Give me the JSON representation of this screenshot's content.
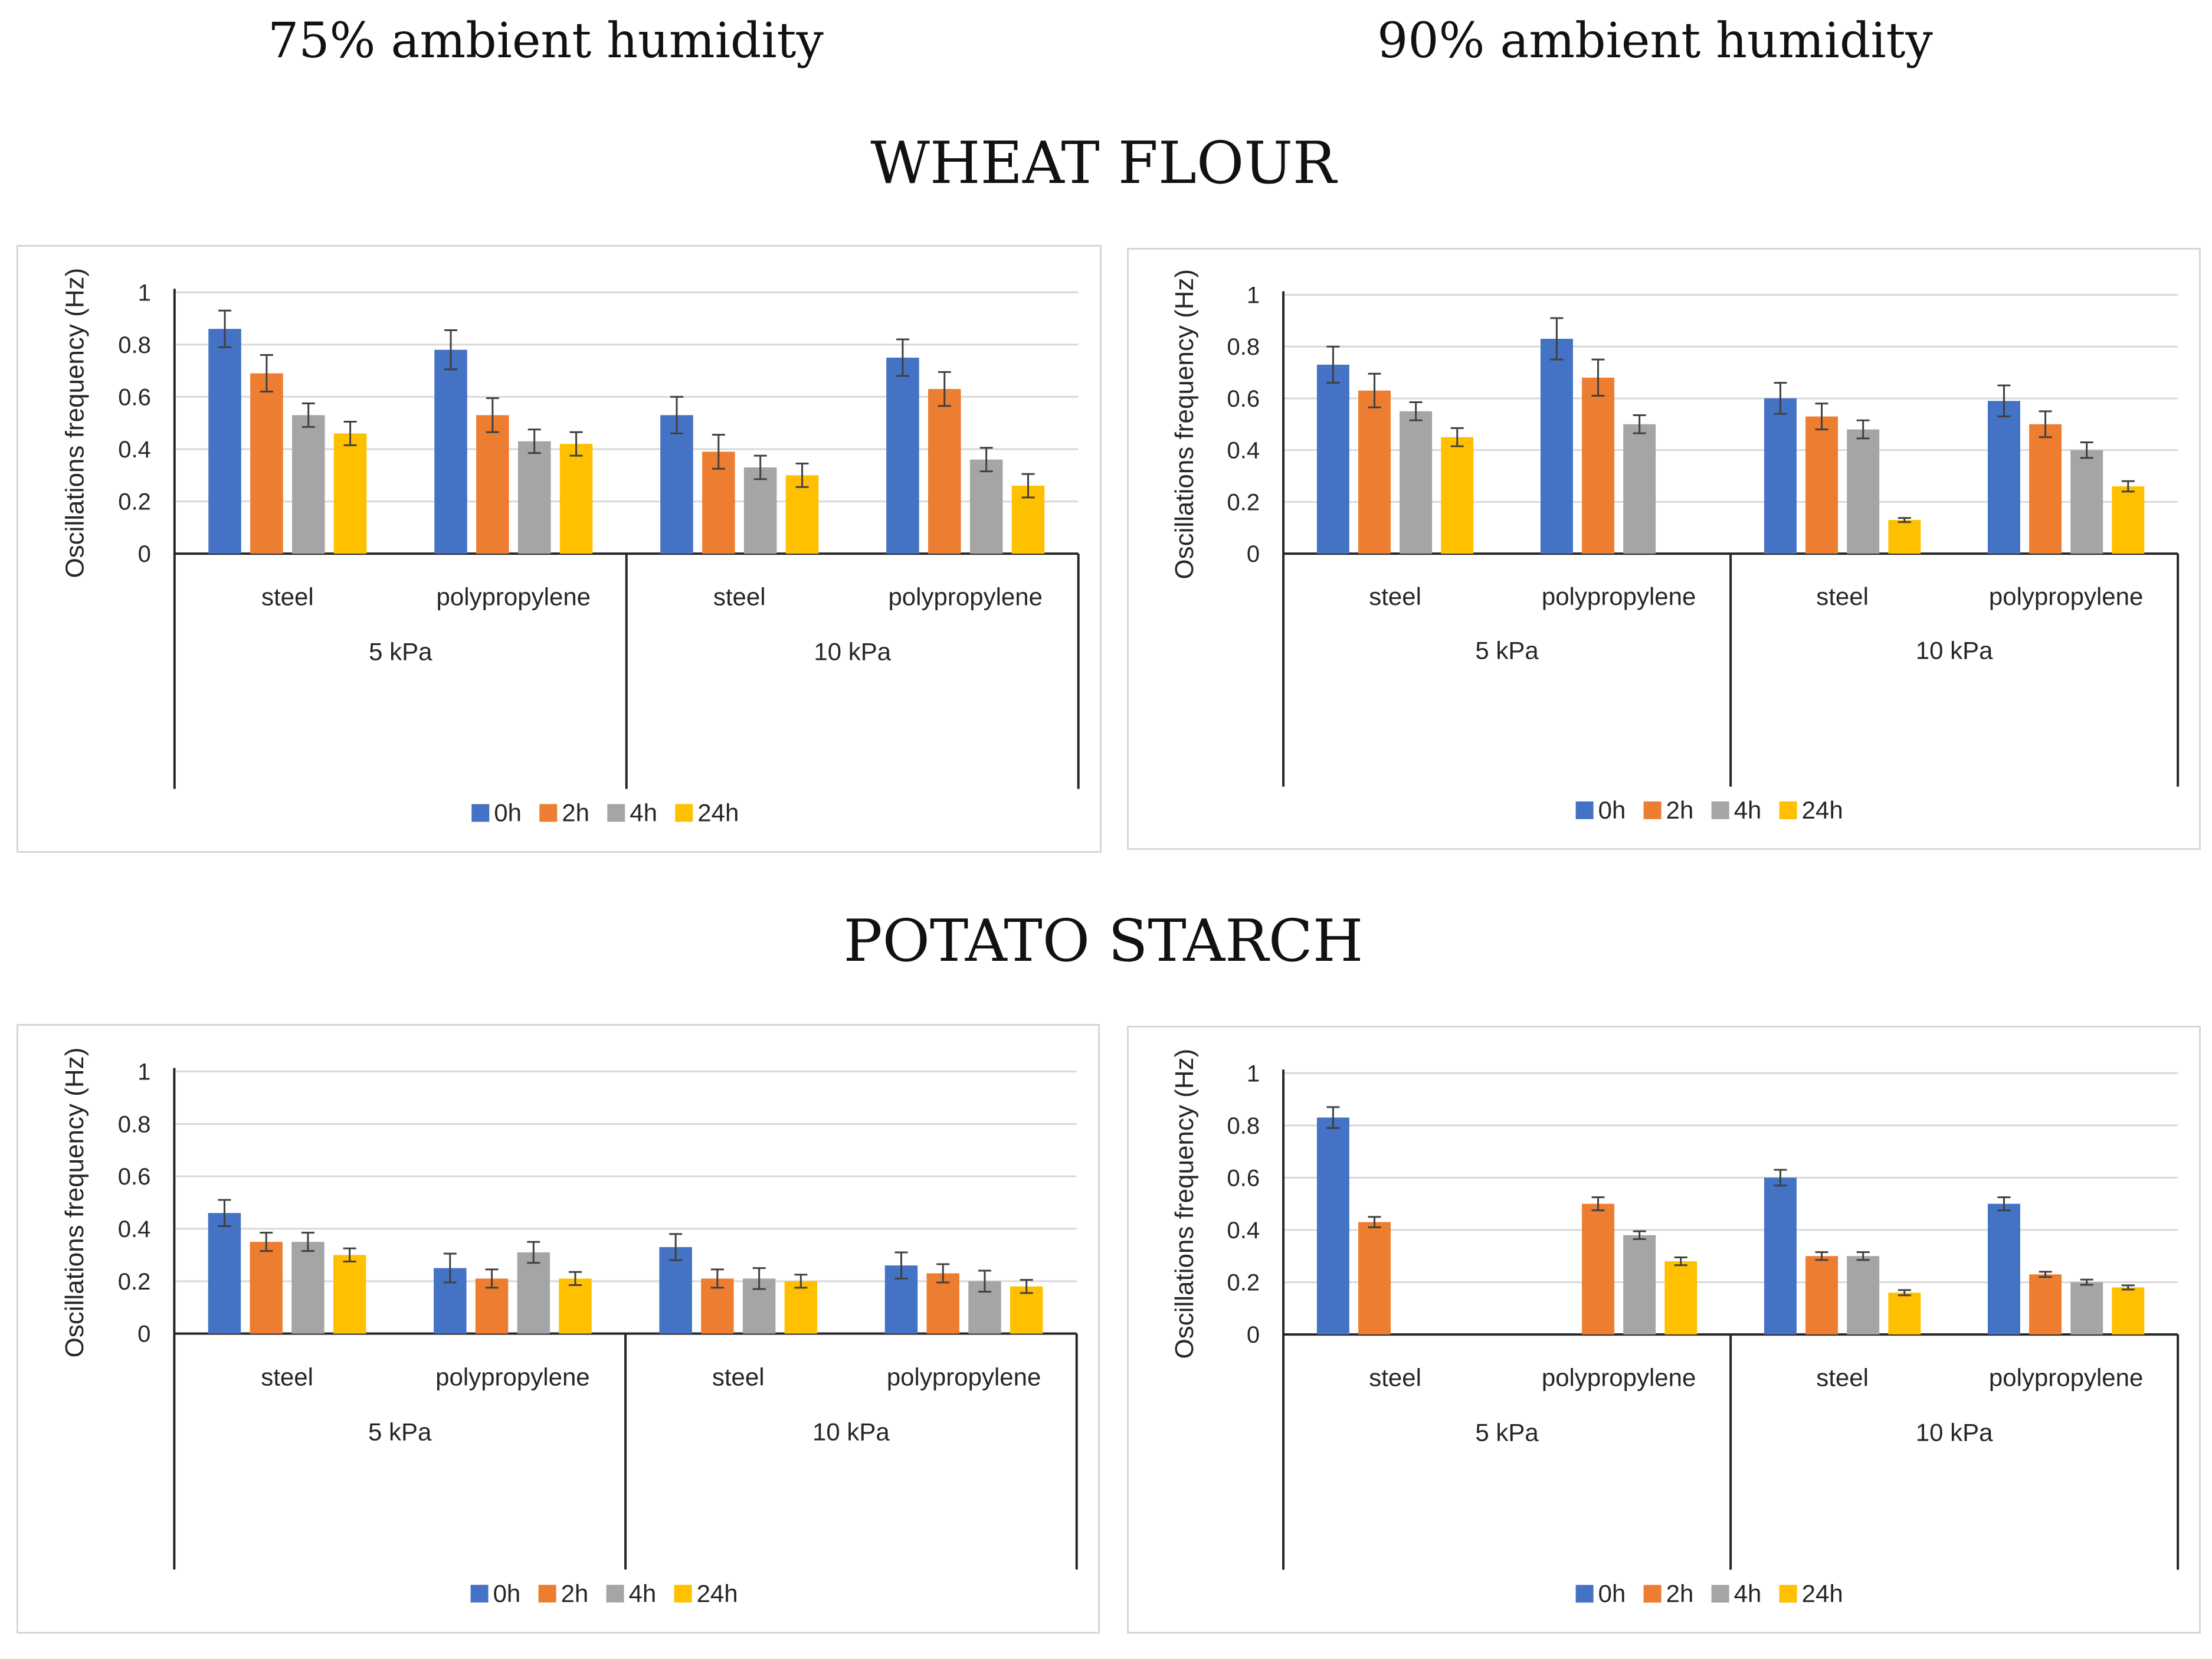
{
  "headers": {
    "left_column": "75% ambient humidity",
    "right_column": "90% ambient humidity",
    "section_top": "WHEAT FLOUR",
    "section_bottom": "POTATO STARCH"
  },
  "colors": {
    "0h": "#4472C4",
    "2h": "#ED7D31",
    "4h": "#A5A5A5",
    "24h": "#FFC000",
    "grid": "#D9D9D9",
    "axis": "#262626",
    "error_bar": "#404040"
  },
  "chart_data": [
    {
      "id": "wheat_75",
      "type": "bar",
      "title": "",
      "ylabel": "Oscillations frequency (Hz)",
      "ylim": [
        0,
        1
      ],
      "yticks": [
        "0",
        "0.2",
        "0.4",
        "0.6",
        "0.8",
        "1"
      ],
      "categories": [
        "steel",
        "polypropylene",
        "steel",
        "polypropylene"
      ],
      "groups": [
        "5 kPa",
        "10 kPa"
      ],
      "legend": "bottom",
      "series": [
        {
          "name": "0h",
          "values": [
            0.86,
            0.78,
            0.53,
            0.75
          ],
          "errors": [
            0.07,
            0.075,
            0.07,
            0.07
          ]
        },
        {
          "name": "2h",
          "values": [
            0.69,
            0.53,
            0.39,
            0.63
          ],
          "errors": [
            0.07,
            0.065,
            0.065,
            0.065
          ]
        },
        {
          "name": "4h",
          "values": [
            0.53,
            0.43,
            0.33,
            0.36
          ],
          "errors": [
            0.045,
            0.045,
            0.045,
            0.045
          ]
        },
        {
          "name": "24h",
          "values": [
            0.46,
            0.42,
            0.3,
            0.26
          ],
          "errors": [
            0.045,
            0.045,
            0.045,
            0.045
          ]
        }
      ]
    },
    {
      "id": "wheat_90",
      "type": "bar",
      "title": "",
      "ylabel": "Oscillations frequency (Hz)",
      "ylim": [
        0,
        1
      ],
      "yticks": [
        "0",
        "0.2",
        "0.4",
        "0.6",
        "0.8",
        "1"
      ],
      "categories": [
        "steel",
        "polypropylene",
        "steel",
        "polypropylene"
      ],
      "groups": [
        "5 kPa",
        "10 kPa"
      ],
      "legend": "bottom",
      "series": [
        {
          "name": "0h",
          "values": [
            0.73,
            0.83,
            0.6,
            0.59
          ],
          "errors": [
            0.07,
            0.08,
            0.06,
            0.06
          ]
        },
        {
          "name": "2h",
          "values": [
            0.63,
            0.68,
            0.53,
            0.5
          ],
          "errors": [
            0.065,
            0.07,
            0.05,
            0.05
          ]
        },
        {
          "name": "4h",
          "values": [
            0.55,
            0.5,
            0.48,
            0.4
          ],
          "errors": [
            0.035,
            0.035,
            0.035,
            0.03
          ]
        },
        {
          "name": "24h",
          "values": [
            0.45,
            null,
            0.13,
            0.26
          ],
          "errors": [
            0.035,
            null,
            0.008,
            0.02
          ]
        }
      ]
    },
    {
      "id": "potato_75",
      "type": "bar",
      "title": "",
      "ylabel": "Oscillations frequency (Hz)",
      "ylim": [
        0,
        1
      ],
      "yticks": [
        "0",
        "0.2",
        "0.4",
        "0.6",
        "0.8",
        "1"
      ],
      "categories": [
        "steel",
        "polypropylene",
        "steel",
        "polypropylene"
      ],
      "groups": [
        "5 kPa",
        "10 kPa"
      ],
      "legend": "bottom",
      "series": [
        {
          "name": "0h",
          "values": [
            0.46,
            0.25,
            0.33,
            0.26
          ],
          "errors": [
            0.05,
            0.055,
            0.05,
            0.05
          ]
        },
        {
          "name": "2h",
          "values": [
            0.35,
            0.21,
            0.21,
            0.23
          ],
          "errors": [
            0.035,
            0.035,
            0.035,
            0.035
          ]
        },
        {
          "name": "4h",
          "values": [
            0.35,
            0.31,
            0.21,
            0.2
          ],
          "errors": [
            0.035,
            0.04,
            0.04,
            0.04
          ]
        },
        {
          "name": "24h",
          "values": [
            0.3,
            0.21,
            0.2,
            0.18
          ],
          "errors": [
            0.025,
            0.025,
            0.025,
            0.025
          ]
        }
      ]
    },
    {
      "id": "potato_90",
      "type": "bar",
      "title": "",
      "ylabel": "Oscillations frequency (Hz)",
      "ylim": [
        0,
        1
      ],
      "yticks": [
        "0",
        "0.2",
        "0.4",
        "0.6",
        "0.8",
        "1"
      ],
      "categories": [
        "steel",
        "polypropylene",
        "steel",
        "polypropylene"
      ],
      "groups": [
        "5 kPa",
        "10 kPa"
      ],
      "legend": "bottom",
      "series": [
        {
          "name": "0h",
          "values": [
            0.83,
            null,
            0.6,
            0.5
          ],
          "errors": [
            0.04,
            null,
            0.03,
            0.025
          ]
        },
        {
          "name": "2h",
          "values": [
            0.43,
            0.5,
            0.3,
            0.23
          ],
          "errors": [
            0.02,
            0.025,
            0.015,
            0.01
          ]
        },
        {
          "name": "4h",
          "values": [
            null,
            0.38,
            0.3,
            0.2
          ],
          "errors": [
            null,
            0.015,
            0.015,
            0.01
          ]
        },
        {
          "name": "24h",
          "values": [
            null,
            0.28,
            0.16,
            0.18
          ],
          "errors": [
            null,
            0.015,
            0.01,
            0.008
          ]
        }
      ]
    }
  ]
}
